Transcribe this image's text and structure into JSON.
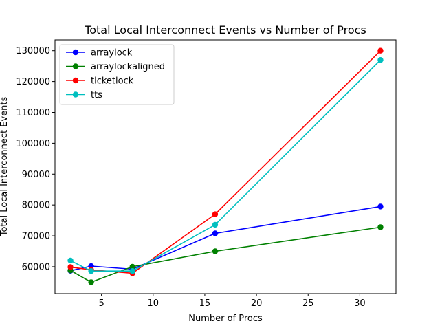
{
  "chart_data": {
    "type": "line",
    "title": "Total Local Interconnect Events vs Number of Procs",
    "xlabel": "Number of Procs",
    "ylabel": "Total Local Interconnect Events",
    "xlim": [
      0.5,
      33.5
    ],
    "ylim": [
      51300,
      133500
    ],
    "xticks": [
      5,
      10,
      15,
      20,
      25,
      30
    ],
    "yticks": [
      60000,
      70000,
      80000,
      90000,
      100000,
      110000,
      120000,
      130000
    ],
    "grid": false,
    "legend_position": "top-left",
    "x": [
      2,
      4,
      8,
      16,
      32
    ],
    "series": [
      {
        "name": "arraylock",
        "color": "#0000ff",
        "values": [
          58700,
          60200,
          59200,
          70800,
          79500
        ]
      },
      {
        "name": "arraylockaligned",
        "color": "#008000",
        "values": [
          58800,
          55000,
          60000,
          65000,
          72800
        ]
      },
      {
        "name": "ticketlock",
        "color": "#ff0000",
        "values": [
          59900,
          59000,
          57900,
          77000,
          130000
        ]
      },
      {
        "name": "tts",
        "color": "#00bfbf",
        "values": [
          62000,
          58600,
          58600,
          73600,
          127000
        ]
      }
    ]
  }
}
